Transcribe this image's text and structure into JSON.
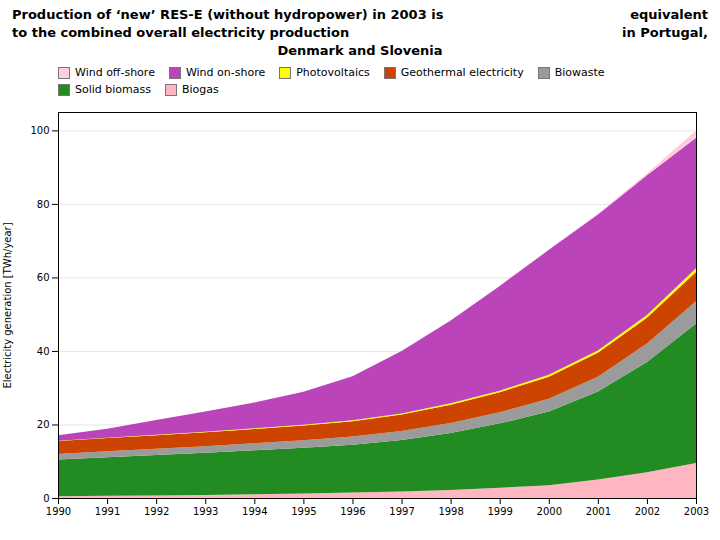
{
  "chart_data": {
    "type": "area",
    "stacked": true,
    "title": "Production of ‘new’ RES-E (without hydropower) in 2003 is",
    "annotations": [
      "equivalent",
      "to the combined overall electricity production",
      "in Portugal,",
      "Denmark and Slovenia"
    ],
    "ylabel": "Electricity generation [TWh/year]",
    "x": [
      1990,
      1991,
      1992,
      1993,
      1994,
      1995,
      1996,
      1997,
      1998,
      1999,
      2000,
      2001,
      2002,
      2003
    ],
    "xlim": [
      1990,
      2003
    ],
    "xticks": [
      1990,
      1991,
      1992,
      1993,
      1994,
      1995,
      1996,
      1997,
      1998,
      1999,
      2000,
      2001,
      2002,
      2003
    ],
    "ylim": [
      0,
      105
    ],
    "yticks": [
      0,
      20,
      40,
      60,
      80,
      100
    ],
    "grid": true,
    "legend": "top-left",
    "series": [
      {
        "name": "Biogas",
        "color": "#ffb6c1",
        "values": [
          0.5,
          0.6,
          0.7,
          0.8,
          1.0,
          1.2,
          1.5,
          1.8,
          2.2,
          2.8,
          3.5,
          5.0,
          7.0,
          9.5
        ]
      },
      {
        "name": "Solid biomass",
        "color": "#228B22",
        "values": [
          10.0,
          10.5,
          11.0,
          11.5,
          12.0,
          12.5,
          13.0,
          14.0,
          15.5,
          17.5,
          20.0,
          24.0,
          30.0,
          38.0
        ]
      },
      {
        "name": "Biowaste",
        "color": "#9b9b9b",
        "values": [
          1.5,
          1.6,
          1.7,
          1.8,
          1.9,
          2.0,
          2.2,
          2.4,
          2.7,
          3.0,
          3.5,
          4.0,
          5.0,
          6.0
        ]
      },
      {
        "name": "Geothermal electricity",
        "color": "#cc4400",
        "values": [
          3.5,
          3.6,
          3.7,
          3.8,
          3.9,
          4.0,
          4.2,
          4.5,
          5.0,
          5.5,
          6.0,
          6.5,
          7.0,
          8.0
        ]
      },
      {
        "name": "Photovoltaics",
        "color": "#ffff00",
        "values": [
          0.05,
          0.07,
          0.1,
          0.12,
          0.15,
          0.2,
          0.25,
          0.3,
          0.35,
          0.4,
          0.5,
          0.6,
          0.8,
          1.0
        ]
      },
      {
        "name": "Wind on-shore",
        "color": "#bb44bb",
        "values": [
          1.5,
          2.5,
          4.0,
          5.5,
          7.0,
          9.0,
          12.0,
          17.0,
          22.5,
          28.5,
          34.0,
          37.0,
          38.0,
          35.5
        ]
      },
      {
        "name": "Wind off-shore",
        "color": "#ffccdd",
        "values": [
          0.0,
          0.0,
          0.0,
          0.0,
          0.0,
          0.0,
          0.0,
          0.0,
          0.0,
          0.0,
          0.1,
          0.2,
          0.5,
          2.0
        ]
      }
    ]
  }
}
